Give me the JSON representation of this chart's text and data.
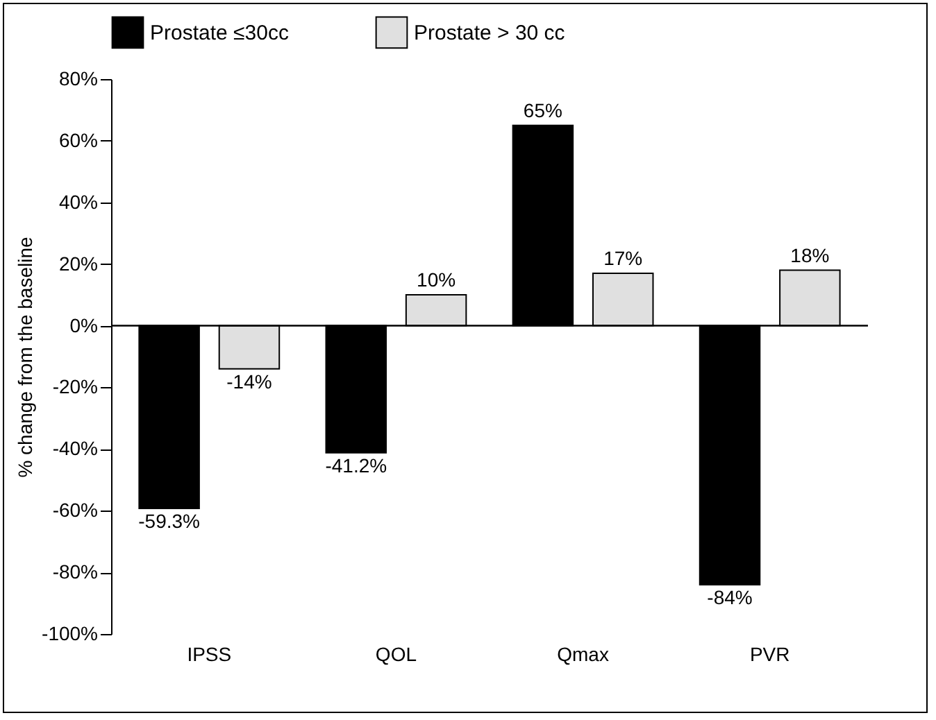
{
  "chart_data": {
    "type": "bar",
    "ylabel": "% change from the baseline",
    "categories": [
      "IPSS",
      "QOL",
      "Qmax",
      "PVR"
    ],
    "series": [
      {
        "name": "Prostate ≤30cc",
        "color": "#000000",
        "values": [
          -59.3,
          -41.2,
          65,
          -84
        ],
        "value_labels": [
          "-59.3%",
          "-41.2%",
          "65%",
          "-84%"
        ]
      },
      {
        "name": "Prostate > 30 cc",
        "color": "#e0e0e0",
        "values": [
          -14,
          10,
          17,
          18
        ],
        "value_labels": [
          "-14%",
          "10%",
          "17%",
          "18%"
        ]
      }
    ],
    "ylim": [
      -100,
      80
    ],
    "yticks": [
      {
        "value": -100,
        "label": "-100%"
      },
      {
        "value": -80,
        "label": "-80%"
      },
      {
        "value": -60,
        "label": "-60%"
      },
      {
        "value": -40,
        "label": "-40%"
      },
      {
        "value": -20,
        "label": "-20%"
      },
      {
        "value": 0,
        "label": "0%"
      },
      {
        "value": 20,
        "label": "20%"
      },
      {
        "value": 40,
        "label": "40%"
      },
      {
        "value": 60,
        "label": "60%"
      },
      {
        "value": 80,
        "label": "80%"
      }
    ],
    "legend": "top"
  }
}
